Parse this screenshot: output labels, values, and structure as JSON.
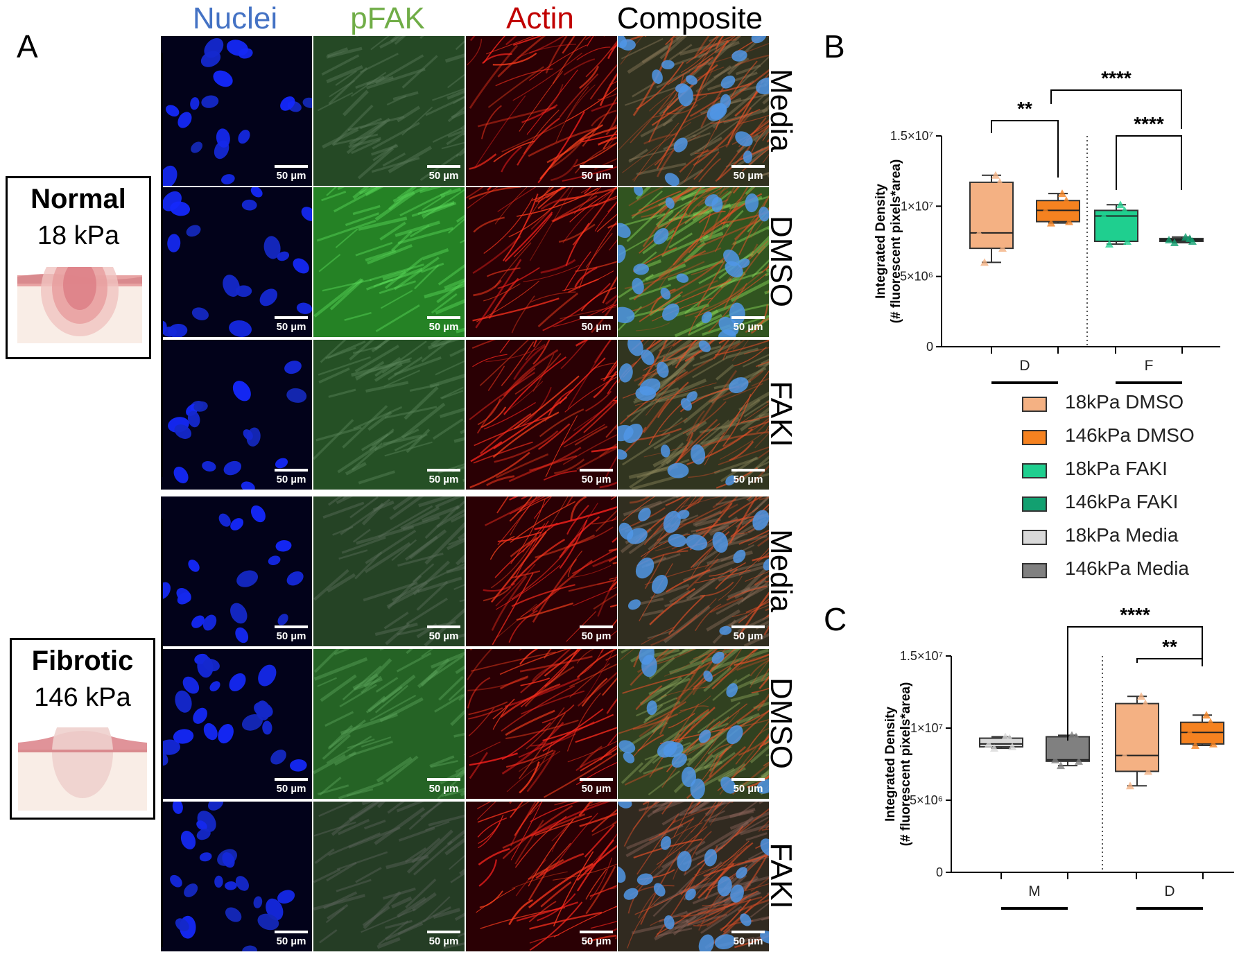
{
  "panels": {
    "a": "A",
    "b": "B",
    "c": "C"
  },
  "channels": [
    {
      "label": "Nuclei",
      "color": "#4472c4"
    },
    {
      "label": "pFAK",
      "color": "#70ad47"
    },
    {
      "label": "Actin",
      "color": "#c00000"
    },
    {
      "label": "Composite",
      "color": "#000000"
    }
  ],
  "row_labels": [
    "Media",
    "DMSO",
    "FAKI",
    "Media",
    "DMSO",
    "FAKI"
  ],
  "scale_bar": "50 µm",
  "conditions": [
    {
      "title": "Normal",
      "stiffness": "18 kPa"
    },
    {
      "title": "Fibrotic",
      "stiffness": "146 kPa"
    }
  ],
  "legend": [
    {
      "label": "18kPa DMSO",
      "color": "#f4b183"
    },
    {
      "label": "146kPa DMSO",
      "color": "#f58220"
    },
    {
      "label": "18kPa FAKI",
      "color": "#1fcf8f"
    },
    {
      "label": "146kPa FAKI",
      "color": "#12a070"
    },
    {
      "label": "18kPa Media",
      "color": "#d9d9d9"
    },
    {
      "label": "146kPa Media",
      "color": "#808080"
    }
  ],
  "chart_data": [
    {
      "type": "box",
      "panel": "B",
      "ylabel_line1": "Integrated Density",
      "ylabel_line2": "(# fluorescent pixels*area)",
      "ylim": [
        0,
        15000000
      ],
      "yticks": [
        {
          "value": 0,
          "label": "0"
        },
        {
          "value": 5000000,
          "label": "5×10⁶"
        },
        {
          "value": 10000000,
          "label": "1×10⁷"
        },
        {
          "value": 15000000,
          "label": "1.5×10⁷"
        }
      ],
      "groups": [
        "D",
        "F"
      ],
      "boxes": [
        {
          "group": "D",
          "series": "18kPa DMSO",
          "min": 6000000,
          "q1": 7000000,
          "median": 8100000,
          "q3": 11700000,
          "max": 12200000,
          "color": "#f4b183"
        },
        {
          "group": "D",
          "series": "146kPa DMSO",
          "min": 8800000,
          "q1": 8900000,
          "median": 9700000,
          "q3": 10400000,
          "max": 10900000,
          "color": "#f58220"
        },
        {
          "group": "F",
          "series": "18kPa FAKI",
          "min": 7300000,
          "q1": 7500000,
          "median": 9300000,
          "q3": 9700000,
          "max": 10100000,
          "color": "#1fcf8f"
        },
        {
          "group": "F",
          "series": "146kPa FAKI",
          "min": 7400000,
          "q1": 7500000,
          "median": 7600000,
          "q3": 7700000,
          "max": 7800000,
          "color": "#12a070"
        }
      ],
      "significance": [
        {
          "label": "**",
          "from": "18kPa DMSO",
          "to": "146kPa DMSO"
        },
        {
          "label": "****",
          "from": "146kPa DMSO",
          "to": "146kPa FAKI"
        },
        {
          "label": "****",
          "from": "18kPa FAKI",
          "to": "146kPa FAKI"
        }
      ]
    },
    {
      "type": "box",
      "panel": "C",
      "ylabel_line1": "Integrated Density",
      "ylabel_line2": "(# fluorescent pixels*area)",
      "ylim": [
        0,
        15000000
      ],
      "yticks": [
        {
          "value": 0,
          "label": "0"
        },
        {
          "value": 5000000,
          "label": "5×10⁶"
        },
        {
          "value": 10000000,
          "label": "1×10⁷"
        },
        {
          "value": 15000000,
          "label": "1.5×10⁷"
        }
      ],
      "groups": [
        "M",
        "D"
      ],
      "boxes": [
        {
          "group": "M",
          "series": "18kPa Media",
          "min": 8600000,
          "q1": 8700000,
          "median": 8900000,
          "q3": 9300000,
          "max": 9400000,
          "color": "#d9d9d9"
        },
        {
          "group": "M",
          "series": "146kPa Media",
          "min": 7400000,
          "q1": 7700000,
          "median": 7800000,
          "q3": 9400000,
          "max": 9500000,
          "color": "#808080"
        },
        {
          "group": "D",
          "series": "18kPa DMSO",
          "min": 6000000,
          "q1": 7000000,
          "median": 8100000,
          "q3": 11700000,
          "max": 12200000,
          "color": "#f4b183"
        },
        {
          "group": "D",
          "series": "146kPa DMSO",
          "min": 8800000,
          "q1": 8900000,
          "median": 9700000,
          "q3": 10400000,
          "max": 10900000,
          "color": "#f58220"
        }
      ],
      "significance": [
        {
          "label": "****",
          "from": "146kPa Media",
          "to": "146kPa DMSO"
        },
        {
          "label": "**",
          "from": "18kPa DMSO",
          "to": "146kPa DMSO"
        }
      ]
    }
  ]
}
